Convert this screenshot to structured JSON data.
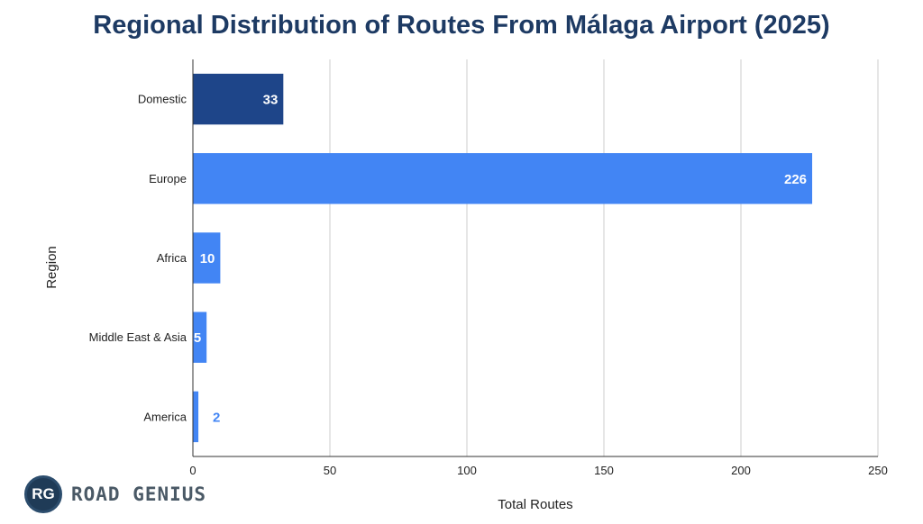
{
  "chart_data": {
    "type": "bar",
    "orientation": "horizontal",
    "title": "Regional Distribution of Routes From Málaga Airport (2025)",
    "xlabel": "Total Routes",
    "ylabel": "Region",
    "categories": [
      "Domestic",
      "Europe",
      "Africa",
      "Middle East & Asia",
      "America"
    ],
    "values": [
      33,
      226,
      10,
      5,
      2
    ],
    "bar_colors": [
      "#1e4589",
      "#4285f4",
      "#4285f4",
      "#4285f4",
      "#4285f4"
    ],
    "xlim": [
      0,
      250
    ],
    "xticks": [
      0,
      50,
      100,
      150,
      200,
      250
    ],
    "grid": true,
    "legend": "none"
  },
  "branding": {
    "badge": "RG",
    "name": "ROAD GENIUS"
  },
  "colors": {
    "title": "#1d3a63",
    "grid": "#cccccc",
    "value_inside": "#ffffff",
    "value_outside": "#4285f4"
  }
}
